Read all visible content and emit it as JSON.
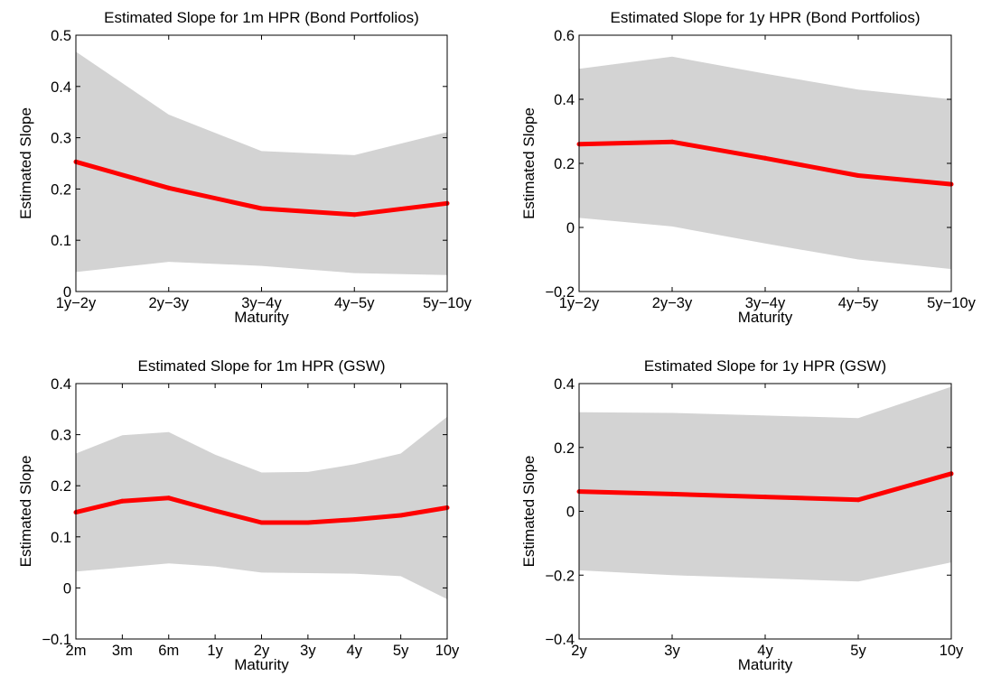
{
  "chart_data": [
    {
      "type": "line",
      "title": "Estimated Slope for 1m HPR (Bond Portfolios)",
      "xlabel": "Maturity",
      "ylabel": "Estimated Slope",
      "categories": [
        "1y−2y",
        "2y−3y",
        "3y−4y",
        "4y−5y",
        "5y−10y"
      ],
      "ylim": [
        0,
        0.5
      ],
      "yticks": [
        "0",
        "0.1",
        "0.2",
        "0.3",
        "0.4",
        "0.5"
      ],
      "series": [
        {
          "values": [
            0.253,
            0.202,
            0.162,
            0.15,
            0.172
          ],
          "color": "#ff0000"
        }
      ],
      "band": {
        "lower": [
          0.038,
          0.058,
          0.05,
          0.036,
          0.032
        ],
        "upper": [
          0.468,
          0.345,
          0.274,
          0.266,
          0.311
        ],
        "color": "#d3d3d3"
      },
      "grid": false
    },
    {
      "type": "line",
      "title": "Estimated Slope for 1y HPR (Bond Portfolios)",
      "xlabel": "Maturity",
      "ylabel": "Estimated Slope",
      "categories": [
        "1y−2y",
        "2y−3y",
        "3y−4y",
        "4y−5y",
        "5y−10y"
      ],
      "ylim": [
        -0.2,
        0.6
      ],
      "yticks": [
        "−0.2",
        "0",
        "0.2",
        "0.4",
        "0.6"
      ],
      "series": [
        {
          "values": [
            0.26,
            0.267,
            0.216,
            0.162,
            0.135
          ],
          "color": "#ff0000"
        }
      ],
      "band": {
        "lower": [
          0.03,
          0.003,
          -0.05,
          -0.1,
          -0.13
        ],
        "upper": [
          0.495,
          0.533,
          0.48,
          0.43,
          0.4
        ],
        "color": "#d3d3d3"
      },
      "grid": false
    },
    {
      "type": "line",
      "title": "Estimated Slope for 1m HPR (GSW)",
      "xlabel": "Maturity",
      "ylabel": "Estimated Slope",
      "categories": [
        "2m",
        "3m",
        "6m",
        "1y",
        "2y",
        "3y",
        "4y",
        "5y",
        "10y"
      ],
      "ylim": [
        -0.1,
        0.4
      ],
      "yticks": [
        "−0.1",
        "0",
        "0.1",
        "0.2",
        "0.3",
        "0.4"
      ],
      "series": [
        {
          "values": [
            0.148,
            0.17,
            0.176,
            0.151,
            0.128,
            0.128,
            0.134,
            0.142,
            0.157
          ],
          "color": "#ff0000"
        }
      ],
      "band": {
        "lower": [
          0.032,
          0.04,
          0.048,
          0.042,
          0.03,
          0.029,
          0.028,
          0.023,
          -0.022
        ],
        "upper": [
          0.263,
          0.299,
          0.305,
          0.261,
          0.226,
          0.227,
          0.242,
          0.263,
          0.335
        ],
        "color": "#d3d3d3"
      },
      "grid": false
    },
    {
      "type": "line",
      "title": "Estimated Slope for 1y HPR (GSW)",
      "xlabel": "Maturity",
      "ylabel": "Estimated Slope",
      "categories": [
        "2y",
        "3y",
        "4y",
        "5y",
        "10y"
      ],
      "ylim": [
        -0.4,
        0.4
      ],
      "yticks": [
        "−0.4",
        "−0.2",
        "0",
        "0.2",
        "0.4"
      ],
      "series": [
        {
          "values": [
            0.062,
            0.054,
            0.045,
            0.036,
            0.118
          ],
          "color": "#ff0000"
        }
      ],
      "band": {
        "lower": [
          -0.185,
          -0.2,
          -0.21,
          -0.22,
          -0.16
        ],
        "upper": [
          0.31,
          0.308,
          0.3,
          0.292,
          0.39
        ],
        "color": "#d3d3d3"
      },
      "grid": false
    }
  ]
}
